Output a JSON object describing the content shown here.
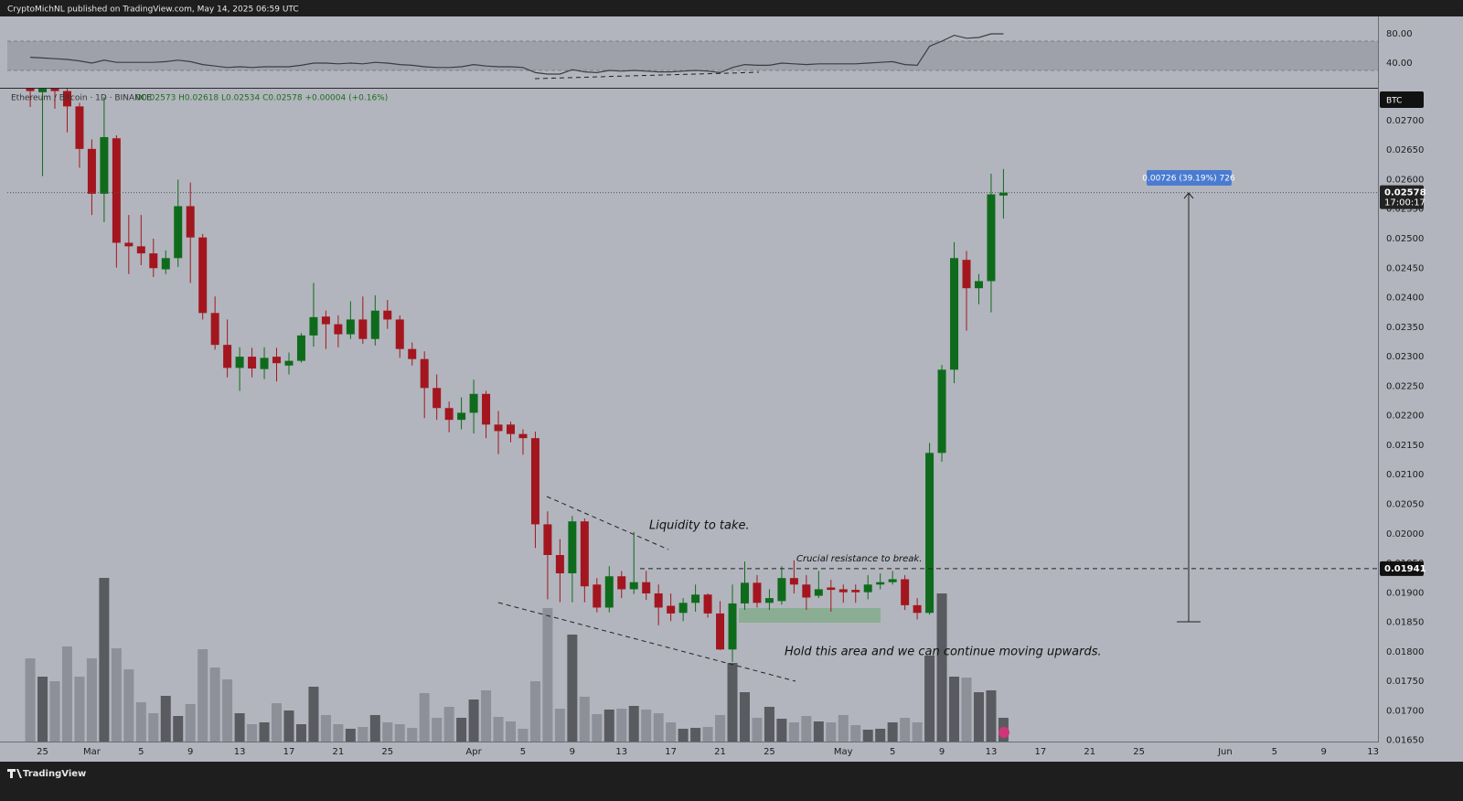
{
  "header": "CryptoMichNL published on TradingView.com, May 14, 2025 06:59 UTC",
  "footer": "TradingView",
  "chart_data": [
    {
      "type": "candlestick",
      "title": "Ethereum / Bitcoin · 1D · BINANCE",
      "legend": "O0.02573 H0.02618 L0.02534 C0.02578 +0.00004 (+0.16%)",
      "currency": "BTC",
      "up_color": "#0f6b1c",
      "down_color": "#a3161f",
      "grid": false,
      "open": [
        0.0276,
        0.02748,
        0.0276,
        0.0275,
        0.02724,
        0.02652,
        0.02576,
        0.0267,
        0.02493,
        0.02487,
        0.02475,
        0.02448,
        0.02467,
        0.02555,
        0.02502,
        0.02374,
        0.0232,
        0.02281,
        0.023,
        0.02279,
        0.023,
        0.02285,
        0.02293,
        0.02336,
        0.02368,
        0.02355,
        0.02338,
        0.02363,
        0.0233,
        0.02378,
        0.02363,
        0.02313,
        0.02296,
        0.02247,
        0.02213,
        0.02193,
        0.02205,
        0.02237,
        0.02185,
        0.02185,
        0.02169,
        0.02162,
        0.02016,
        0.01964,
        0.01933,
        0.02021,
        0.01914,
        0.01875,
        0.01928,
        0.01906,
        0.01918,
        0.01899,
        0.01878,
        0.01866,
        0.01883,
        0.01897,
        0.01865,
        0.01804,
        0.01882,
        0.01917,
        0.01883,
        0.01886,
        0.01925,
        0.01914,
        0.01895,
        0.01909,
        0.01906,
        0.01905,
        0.01901,
        0.01914,
        0.01918,
        0.01923,
        0.01879,
        0.01866,
        0.02137,
        0.02278,
        0.02464,
        0.02416,
        0.02428,
        0.02573
      ],
      "high": [
        0.0278,
        0.0277,
        0.0278,
        0.0276,
        0.0273,
        0.02668,
        0.0274,
        0.02675,
        0.0254,
        0.0254,
        0.025,
        0.0248,
        0.026,
        0.02595,
        0.02508,
        0.02402,
        0.02363,
        0.02316,
        0.02315,
        0.02316,
        0.02315,
        0.02307,
        0.0234,
        0.02425,
        0.02378,
        0.0237,
        0.02394,
        0.02402,
        0.02404,
        0.02396,
        0.0237,
        0.02324,
        0.02309,
        0.0227,
        0.02224,
        0.02231,
        0.02261,
        0.02242,
        0.02208,
        0.0219,
        0.02177,
        0.02173,
        0.02038,
        0.01991,
        0.0203,
        0.02026,
        0.01925,
        0.01945,
        0.01937,
        0.02003,
        0.01937,
        0.01914,
        0.01899,
        0.01891,
        0.01914,
        0.01899,
        0.01886,
        0.01914,
        0.01953,
        0.0193,
        0.01906,
        0.01945,
        0.01955,
        0.0193,
        0.01937,
        0.01922,
        0.01914,
        0.01914,
        0.0193,
        0.01933,
        0.01937,
        0.0193,
        0.01891,
        0.02154,
        0.02286,
        0.02494,
        0.02479,
        0.0244,
        0.0261,
        0.02618
      ],
      "low": [
        0.02723,
        0.02606,
        0.0272,
        0.0268,
        0.0262,
        0.0254,
        0.02528,
        0.02451,
        0.0244,
        0.02455,
        0.02435,
        0.0244,
        0.02452,
        0.02425,
        0.02363,
        0.02312,
        0.02265,
        0.02242,
        0.02265,
        0.02262,
        0.02258,
        0.0227,
        0.0229,
        0.02317,
        0.02313,
        0.02316,
        0.0233,
        0.02322,
        0.02319,
        0.02347,
        0.02298,
        0.02285,
        0.02196,
        0.02193,
        0.02172,
        0.02177,
        0.0217,
        0.02162,
        0.02135,
        0.02155,
        0.02134,
        0.01976,
        0.01889,
        0.01884,
        0.01884,
        0.01884,
        0.01867,
        0.01867,
        0.01891,
        0.01898,
        0.01888,
        0.01845,
        0.01852,
        0.01852,
        0.01868,
        0.01858,
        0.01803,
        0.01783,
        0.01871,
        0.01875,
        0.01871,
        0.0188,
        0.01899,
        0.01871,
        0.01891,
        0.01868,
        0.01883,
        0.01883,
        0.01889,
        0.01906,
        0.01914,
        0.01871,
        0.01855,
        0.01863,
        0.02122,
        0.02255,
        0.02344,
        0.02389,
        0.02375,
        0.02534
      ],
      "close": [
        0.0275,
        0.02755,
        0.0275,
        0.02724,
        0.02652,
        0.02576,
        0.02672,
        0.02493,
        0.02487,
        0.02475,
        0.0245,
        0.02467,
        0.02555,
        0.02502,
        0.02374,
        0.0232,
        0.02281,
        0.023,
        0.0228,
        0.02298,
        0.02289,
        0.02293,
        0.02336,
        0.02367,
        0.02355,
        0.02338,
        0.02363,
        0.0233,
        0.02378,
        0.02363,
        0.02313,
        0.02296,
        0.02247,
        0.02213,
        0.02193,
        0.02205,
        0.02237,
        0.02185,
        0.02174,
        0.02169,
        0.02162,
        0.02016,
        0.01964,
        0.01933,
        0.02021,
        0.01911,
        0.01875,
        0.01928,
        0.01906,
        0.01918,
        0.01899,
        0.01875,
        0.01865,
        0.01883,
        0.01897,
        0.01865,
        0.01804,
        0.01882,
        0.01917,
        0.01883,
        0.01891,
        0.01925,
        0.01914,
        0.01892,
        0.01906,
        0.01905,
        0.01901,
        0.01901,
        0.01914,
        0.01918,
        0.01923,
        0.01879,
        0.01866,
        0.02137,
        0.02278,
        0.02467,
        0.02416,
        0.02428,
        0.02575,
        0.02578
      ],
      "xlim": [
        -1.86,
        109.4
      ],
      "xticks": [
        {
          "value": 1,
          "label": "25"
        },
        {
          "value": 5,
          "label": "Mar"
        },
        {
          "value": 9,
          "label": "5"
        },
        {
          "value": 13,
          "label": "9"
        },
        {
          "value": 17,
          "label": "13"
        },
        {
          "value": 21,
          "label": "17"
        },
        {
          "value": 25,
          "label": "21"
        },
        {
          "value": 29,
          "label": "25"
        },
        {
          "value": 36,
          "label": "Apr"
        },
        {
          "value": 40,
          "label": "5"
        },
        {
          "value": 44,
          "label": "9"
        },
        {
          "value": 48,
          "label": "13"
        },
        {
          "value": 52,
          "label": "17"
        },
        {
          "value": 56,
          "label": "21"
        },
        {
          "value": 60,
          "label": "25"
        },
        {
          "value": 66,
          "label": "May"
        },
        {
          "value": 70,
          "label": "5"
        },
        {
          "value": 74,
          "label": "9"
        },
        {
          "value": 78,
          "label": "13"
        },
        {
          "value": 82,
          "label": "17"
        },
        {
          "value": 86,
          "label": "21"
        },
        {
          "value": 90,
          "label": "25"
        },
        {
          "value": 97,
          "label": "Jun"
        },
        {
          "value": 101,
          "label": "5"
        },
        {
          "value": 105,
          "label": "9"
        },
        {
          "value": 109,
          "label": "13"
        }
      ],
      "ylim": [
        0.01648,
        0.02754
      ],
      "yticks": [
        {
          "value": 0.0165,
          "label": "0.01650"
        },
        {
          "value": 0.017,
          "label": "0.01700"
        },
        {
          "value": 0.0175,
          "label": "0.01750"
        },
        {
          "value": 0.018,
          "label": "0.01800"
        },
        {
          "value": 0.0185,
          "label": "0.01850"
        },
        {
          "value": 0.019,
          "label": "0.01900"
        },
        {
          "value": 0.0195,
          "label": "0.01950"
        },
        {
          "value": 0.02,
          "label": "0.02000"
        },
        {
          "value": 0.0205,
          "label": "0.02050"
        },
        {
          "value": 0.021,
          "label": "0.02100"
        },
        {
          "value": 0.0215,
          "label": "0.02150"
        },
        {
          "value": 0.022,
          "label": "0.02200"
        },
        {
          "value": 0.0225,
          "label": "0.02250"
        },
        {
          "value": 0.023,
          "label": "0.02300"
        },
        {
          "value": 0.0235,
          "label": "0.02350"
        },
        {
          "value": 0.024,
          "label": "0.02400"
        },
        {
          "value": 0.0245,
          "label": "0.02450"
        },
        {
          "value": 0.025,
          "label": "0.02500"
        },
        {
          "value": 0.0255,
          "label": "0.02550"
        },
        {
          "value": 0.026,
          "label": "0.02600"
        },
        {
          "value": 0.0265,
          "label": "0.02650"
        },
        {
          "value": 0.027,
          "label": "0.02700"
        }
      ],
      "annotations": {
        "level": 0.01941,
        "last_price": 0.02578,
        "countdown": "17:00:17",
        "measure": "0.00726 (39.19%) 726",
        "liquidity": "Liquidity to take.",
        "resistance": "Crucial resistance to break.",
        "hold": "Hold this area and we can continue moving upwards."
      }
    },
    {
      "type": "bar",
      "up_color": "#5a5b60",
      "down_color": "#8d9099",
      "values": [
        91,
        71,
        66,
        104,
        71,
        91,
        179,
        102,
        79,
        43,
        31,
        50,
        28,
        41,
        101,
        81,
        68,
        31,
        19,
        21,
        42,
        34,
        19,
        60,
        29,
        19,
        14,
        16,
        29,
        21,
        19,
        15,
        53,
        26,
        38,
        26,
        46,
        56,
        27,
        22,
        14,
        66,
        146,
        36,
        117,
        49,
        30,
        35,
        36,
        39,
        35,
        31,
        21,
        14,
        15,
        16,
        29,
        86,
        54,
        26,
        38,
        25,
        21,
        28,
        22,
        21,
        29,
        18,
        13,
        14,
        21,
        26,
        21,
        94,
        162,
        71,
        70,
        54,
        56,
        26
      ]
    },
    {
      "type": "line",
      "color": "#3c3d42",
      "band": [
        30,
        70
      ],
      "values": [
        48,
        47,
        46,
        45,
        43,
        40,
        44,
        41,
        41,
        41,
        41,
        42,
        44,
        42,
        38,
        36,
        34,
        35,
        34,
        35,
        35,
        35,
        37,
        40,
        40,
        39,
        40,
        39,
        41,
        40,
        38,
        37,
        35,
        34,
        34,
        35,
        38,
        36,
        35,
        35,
        34,
        27,
        25,
        25,
        31,
        28,
        27,
        30,
        29,
        30,
        29,
        28,
        28,
        29,
        30,
        29,
        27,
        34,
        38,
        37,
        37,
        40,
        39,
        38,
        39,
        39,
        39,
        39,
        40,
        41,
        42,
        38,
        37,
        63,
        70,
        78,
        74,
        75,
        80,
        80
      ],
      "ylim": [
        6.25,
        103.75
      ],
      "yticks": [
        {
          "value": 80,
          "label": "80.00"
        },
        {
          "value": 40,
          "label": "40.00"
        }
      ]
    }
  ]
}
